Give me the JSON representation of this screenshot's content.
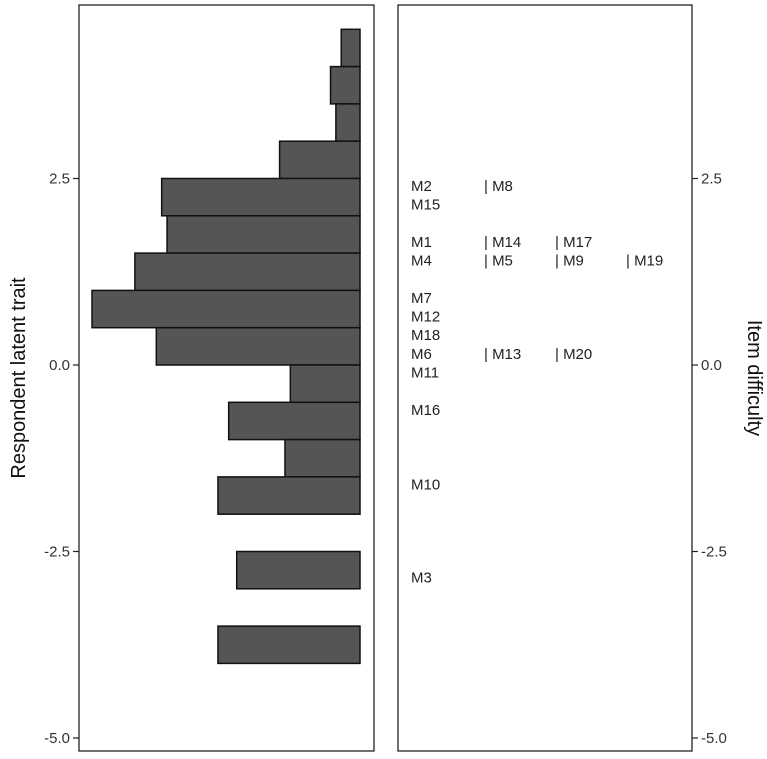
{
  "chart_data": {
    "type": "bar",
    "y_axis_left_label": "Respondent latent trait",
    "y_axis_right_label": "Item difficulty",
    "ylim": [
      -5.0,
      5.0
    ],
    "yticks": [
      {
        "value": 2.5,
        "label": "2.5"
      },
      {
        "value": 0.0,
        "label": "0.0"
      },
      {
        "value": -2.5,
        "label": "-2.5"
      },
      {
        "value": -5.0,
        "label": "-5.0"
      }
    ],
    "respondent_histogram": {
      "bin_width": 0.5,
      "bins": [
        {
          "from": 4.0,
          "to": 4.5,
          "count": 0.07
        },
        {
          "from": 3.5,
          "to": 4.0,
          "count": 0.11
        },
        {
          "from": 3.0,
          "to": 3.5,
          "count": 0.09
        },
        {
          "from": 2.5,
          "to": 3.0,
          "count": 0.3
        },
        {
          "from": 2.0,
          "to": 2.5,
          "count": 0.74
        },
        {
          "from": 1.5,
          "to": 2.0,
          "count": 0.72
        },
        {
          "from": 1.0,
          "to": 1.5,
          "count": 0.84
        },
        {
          "from": 0.5,
          "to": 1.0,
          "count": 1.0
        },
        {
          "from": 0.0,
          "to": 0.5,
          "count": 0.76
        },
        {
          "from": -0.5,
          "to": 0.0,
          "count": 0.26
        },
        {
          "from": -1.0,
          "to": -0.5,
          "count": 0.49
        },
        {
          "from": -1.5,
          "to": -1.0,
          "count": 0.28
        },
        {
          "from": -2.0,
          "to": -1.5,
          "count": 0.53
        },
        {
          "from": -2.5,
          "to": -2.0,
          "count": 0.0
        },
        {
          "from": -3.0,
          "to": -2.5,
          "count": 0.46
        },
        {
          "from": -3.5,
          "to": -3.0,
          "count": 0.0
        },
        {
          "from": -4.0,
          "to": -3.5,
          "count": 0.53
        }
      ]
    },
    "items": [
      {
        "y": 2.4,
        "labels": [
          "M2",
          "| M8"
        ]
      },
      {
        "y": 2.15,
        "labels": [
          "M15"
        ]
      },
      {
        "y": 1.65,
        "labels": [
          "M1",
          "| M14",
          "| M17"
        ]
      },
      {
        "y": 1.4,
        "labels": [
          "M4",
          "| M5",
          "| M9",
          "| M19"
        ]
      },
      {
        "y": 0.9,
        "labels": [
          "M7"
        ]
      },
      {
        "y": 0.65,
        "labels": [
          "M12"
        ]
      },
      {
        "y": 0.4,
        "labels": [
          "M18"
        ]
      },
      {
        "y": 0.15,
        "labels": [
          "M6",
          "| M13",
          "| M20"
        ]
      },
      {
        "y": -0.1,
        "labels": [
          "M11"
        ]
      },
      {
        "y": -0.6,
        "labels": [
          "M16"
        ]
      },
      {
        "y": -1.6,
        "labels": [
          "M10"
        ]
      },
      {
        "y": -2.85,
        "labels": [
          "M3"
        ]
      }
    ],
    "colors": {
      "bar_fill": "#555555",
      "bar_stroke": "#111111",
      "frame": "#222222"
    }
  }
}
